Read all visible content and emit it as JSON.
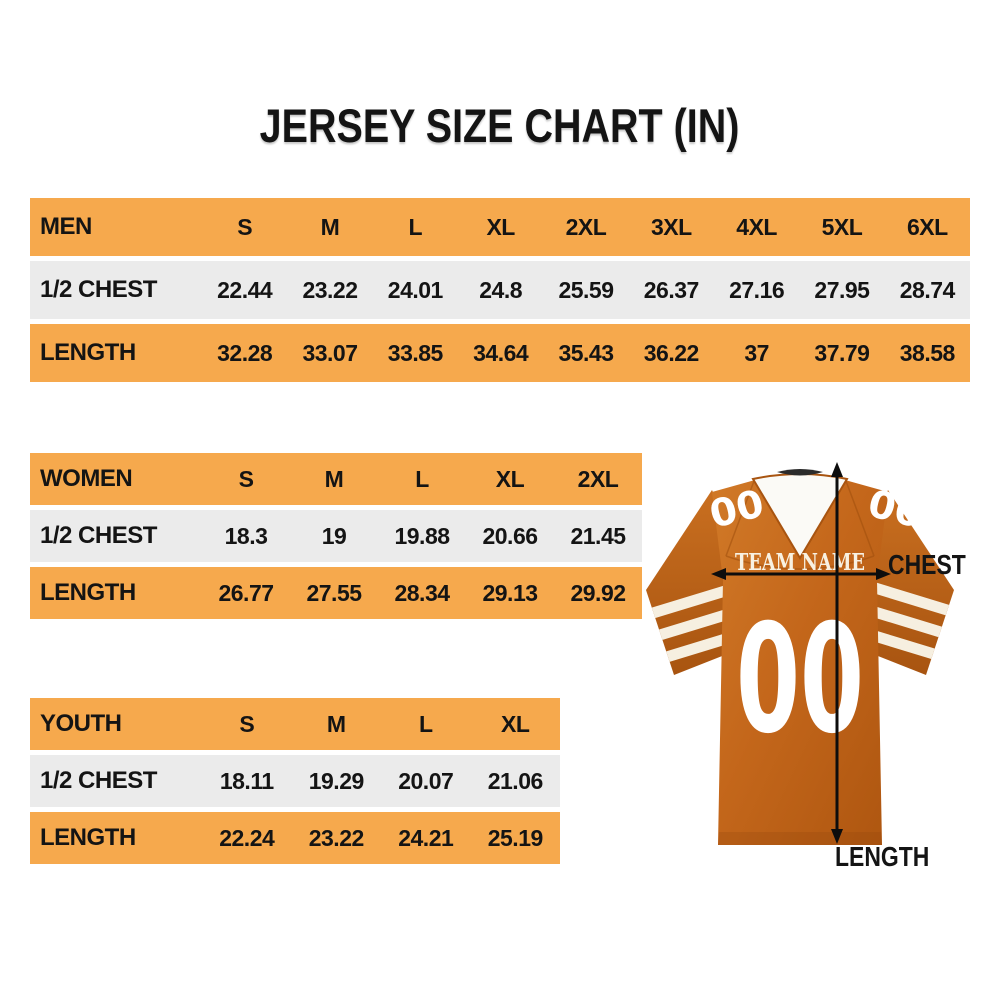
{
  "title": "JERSEY SIZE CHART (IN)",
  "colors": {
    "header_orange": "#F6A94D",
    "row_gray": "#EBEBEB",
    "text_black": "#141414",
    "jersey_orange": "#C4671B",
    "stripe_cream": "#F6EFE0",
    "arrow_black": "#0D0D0D"
  },
  "tables": [
    {
      "name": "MEN",
      "sizes": [
        "S",
        "M",
        "L",
        "XL",
        "2XL",
        "3XL",
        "4XL",
        "5XL",
        "6XL"
      ],
      "rows": [
        {
          "label": "1/2 CHEST",
          "values": [
            "22.44",
            "23.22",
            "24.01",
            "24.8",
            "25.59",
            "26.37",
            "27.16",
            "27.95",
            "28.74"
          ]
        },
        {
          "label": "LENGTH",
          "values": [
            "32.28",
            "33.07",
            "33.85",
            "34.64",
            "35.43",
            "36.22",
            "37",
            "37.79",
            "38.58"
          ]
        }
      ]
    },
    {
      "name": "WOMEN",
      "sizes": [
        "S",
        "M",
        "L",
        "XL",
        "2XL"
      ],
      "rows": [
        {
          "label": "1/2 CHEST",
          "values": [
            "18.3",
            "19",
            "19.88",
            "20.66",
            "21.45"
          ]
        },
        {
          "label": "LENGTH",
          "values": [
            "26.77",
            "27.55",
            "28.34",
            "29.13",
            "29.92"
          ]
        }
      ]
    },
    {
      "name": "YOUTH",
      "sizes": [
        "S",
        "M",
        "L",
        "XL"
      ],
      "rows": [
        {
          "label": "1/2 CHEST",
          "values": [
            "18.11",
            "19.29",
            "20.07",
            "21.06"
          ]
        },
        {
          "label": "LENGTH",
          "values": [
            "22.24",
            "23.22",
            "24.21",
            "25.19"
          ]
        }
      ]
    }
  ],
  "jersey": {
    "team_name": "TEAM NAME",
    "front_number": "00",
    "left_shoulder_number": "00",
    "right_shoulder_number": "00",
    "chest_label": "CHEST",
    "length_label": "LENGTH"
  }
}
